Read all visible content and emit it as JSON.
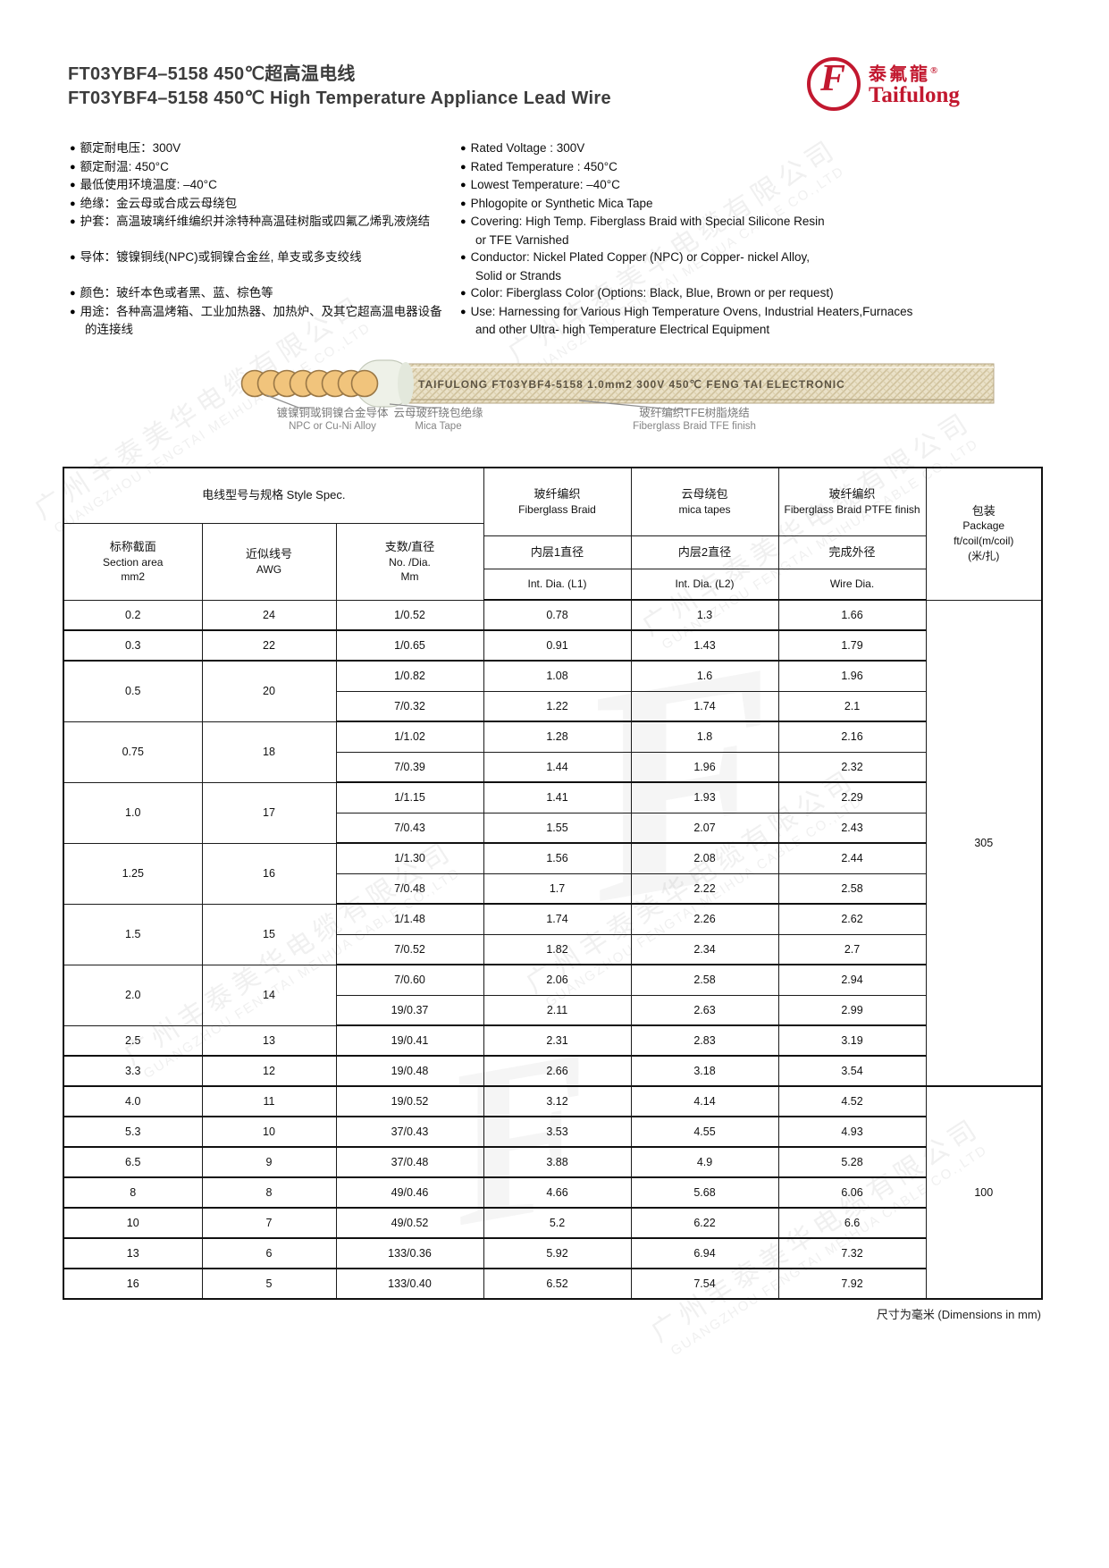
{
  "page": {
    "title_zh": "FT03YBF4–5158  450℃超高温电线",
    "title_en": "FT03YBF4–5158  450℃ High Temperature Appliance Lead Wire",
    "footer_note": "尺寸为毫米 (Dimensions in mm)"
  },
  "watermark": {
    "zh": "广州丰泰美华电缆有限公司",
    "en": "GUANGZHOU FENGTAI MEIHUA CABLE CO.,LTD",
    "monogram": "F"
  },
  "logo": {
    "zh": "泰氟龍",
    "reg": "®",
    "en": "Taifulong",
    "monogram": "F",
    "color": "#c2182f"
  },
  "specs_zh": [
    {
      "t": "额定耐电压：300V"
    },
    {
      "t": "额定耐温: 450°C"
    },
    {
      "t": "最低使用环境温度: –40°C"
    },
    {
      "t": "绝缘：金云母或合成云母绕包"
    },
    {
      "t": "护套：高温玻璃纤维编织并涂特种高温硅树脂或四氟乙烯乳液烧结"
    },
    {
      "blank": true
    },
    {
      "t": "导体：镀镍铜线(NPC)或铜镍合金丝, 单支或多支绞线"
    },
    {
      "blank": true
    },
    {
      "t": "颜色：玻纤本色或者黑、蓝、棕色等"
    },
    {
      "t": "用途：各种高温烤箱、工业加热器、加热炉、及其它超高温电器设备"
    },
    {
      "t": "的连接线",
      "cont": true
    }
  ],
  "specs_en": [
    {
      "t": "Rated Voltage : 300V"
    },
    {
      "t": "Rated Temperature : 450°C"
    },
    {
      "t": "Lowest Temperature:  –40°C"
    },
    {
      "t": "Phlogopite or Synthetic Mica Tape"
    },
    {
      "t": "Covering: High Temp. Fiberglass Braid with Special Silicone Resin"
    },
    {
      "t": "or TFE Varnished",
      "cont": true
    },
    {
      "t": "Conductor: Nickel Plated Copper (NPC) or Copper- nickel Alloy,"
    },
    {
      "t": "Solid  or  Strands",
      "cont": true
    },
    {
      "t": "Color: Fiberglass Color (Options: Black, Blue, Brown or per request)"
    },
    {
      "t": "Use: Harnessing for Various High Temperature Ovens, Industrial Heaters,Furnaces"
    },
    {
      "t": "and other Ultra- high Temperature Electrical Equipment",
      "cont": true
    }
  ],
  "wire": {
    "print": "TAIFULONG   FT03YBF4-5158   1.0mm2   300V   450℃   FENG TAI   ELECTRONIC",
    "labels": [
      {
        "zh": "镀镍铜或铜镍合金导体",
        "en": "NPC or Cu-Ni Alloy"
      },
      {
        "zh": "云母玻纤绕包绝缘",
        "en": "Mica Tape"
      },
      {
        "zh": "玻纤编织TFE树脂烧结",
        "en": "Fiberglass Braid TFE finish"
      }
    ]
  },
  "table": {
    "style_spec_header": "电线型号与规格 Style Spec.",
    "col_headers": [
      {
        "zh": "标称截面",
        "en": "Section area",
        "unit": "mm2"
      },
      {
        "zh": "近似线号",
        "en": "AWG",
        "unit": ""
      },
      {
        "zh": "支数/直径",
        "en": "No. /Dia.",
        "unit": "Mm"
      }
    ],
    "groups": [
      {
        "zh": "玻纤编织",
        "en": "Fiberglass Braid",
        "dim_zh": "内层1直径",
        "dim_en": "Int. Dia. (L1)"
      },
      {
        "zh": "云母绕包",
        "en": "mica tapes",
        "dim_zh": "内层2直径",
        "dim_en": "Int. Dia. (L2)"
      },
      {
        "zh": "玻纤编织",
        "en": "Fiberglass Braid PTFE finish",
        "dim_zh": "完成外径",
        "dim_en": "Wire Dia."
      }
    ],
    "package_header": {
      "zh": "包装",
      "en": "Package",
      "unit1": "ft/coil(m/coil)",
      "unit2": "(米/扎)"
    },
    "rows": [
      {
        "area": "0.2",
        "awg": "24",
        "subs": [
          [
            "1/0.52",
            "0.78",
            "1.3",
            "1.66"
          ]
        ]
      },
      {
        "area": "0.3",
        "awg": "22",
        "subs": [
          [
            "1/0.65",
            "0.91",
            "1.43",
            "1.79"
          ]
        ]
      },
      {
        "area": "0.5",
        "awg": "20",
        "subs": [
          [
            "1/0.82",
            "1.08",
            "1.6",
            "1.96"
          ],
          [
            "7/0.32",
            "1.22",
            "1.74",
            "2.1"
          ]
        ]
      },
      {
        "area": "0.75",
        "awg": "18",
        "subs": [
          [
            "1/1.02",
            "1.28",
            "1.8",
            "2.16"
          ],
          [
            "7/0.39",
            "1.44",
            "1.96",
            "2.32"
          ]
        ]
      },
      {
        "area": "1.0",
        "awg": "17",
        "subs": [
          [
            "1/1.15",
            "1.41",
            "1.93",
            "2.29"
          ],
          [
            "7/0.43",
            "1.55",
            "2.07",
            "2.43"
          ]
        ]
      },
      {
        "area": "1.25",
        "awg": "16",
        "subs": [
          [
            "1/1.30",
            "1.56",
            "2.08",
            "2.44"
          ],
          [
            "7/0.48",
            "1.7",
            "2.22",
            "2.58"
          ]
        ]
      },
      {
        "area": "1.5",
        "awg": "15",
        "subs": [
          [
            "1/1.48",
            "1.74",
            "2.26",
            "2.62"
          ],
          [
            "7/0.52",
            "1.82",
            "2.34",
            "2.7"
          ]
        ]
      },
      {
        "area": "2.0",
        "awg": "14",
        "subs": [
          [
            "7/0.60",
            "2.06",
            "2.58",
            "2.94"
          ],
          [
            "19/0.37",
            "2.11",
            "2.63",
            "2.99"
          ]
        ]
      },
      {
        "area": "2.5",
        "awg": "13",
        "subs": [
          [
            "19/0.41",
            "2.31",
            "2.83",
            "3.19"
          ]
        ]
      },
      {
        "area": "3.3",
        "awg": "12",
        "subs": [
          [
            "19/0.48",
            "2.66",
            "3.18",
            "3.54"
          ]
        ]
      },
      {
        "area": "4.0",
        "awg": "11",
        "subs": [
          [
            "19/0.52",
            "3.12",
            "4.14",
            "4.52"
          ]
        ]
      },
      {
        "area": "5.3",
        "awg": "10",
        "subs": [
          [
            "37/0.43",
            "3.53",
            "4.55",
            "4.93"
          ]
        ]
      },
      {
        "area": "6.5",
        "awg": "9",
        "subs": [
          [
            "37/0.48",
            "3.88",
            "4.9",
            "5.28"
          ]
        ]
      },
      {
        "area": "8",
        "awg": "8",
        "subs": [
          [
            "49/0.46",
            "4.66",
            "5.68",
            "6.06"
          ]
        ]
      },
      {
        "area": "10",
        "awg": "7",
        "subs": [
          [
            "49/0.52",
            "5.2",
            "6.22",
            "6.6"
          ]
        ]
      },
      {
        "area": "13",
        "awg": "6",
        "subs": [
          [
            "133/0.36",
            "5.92",
            "6.94",
            "7.32"
          ]
        ]
      },
      {
        "area": "16",
        "awg": "5",
        "subs": [
          [
            "133/0.40",
            "6.52",
            "7.54",
            "7.92"
          ]
        ]
      }
    ],
    "package_spans": [
      {
        "value": "305",
        "group_count": 10
      },
      {
        "value": "100",
        "group_count": 7
      }
    ]
  }
}
